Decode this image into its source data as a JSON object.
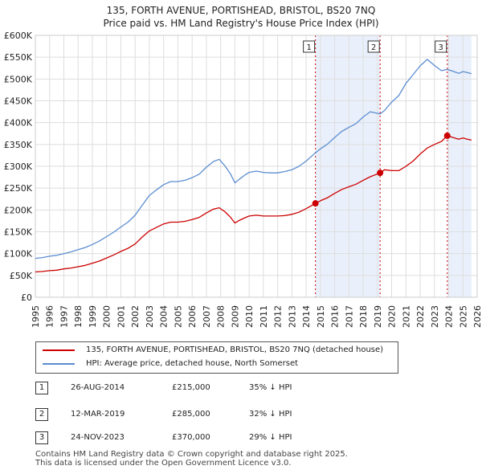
{
  "title_line1": "135, FORTH AVENUE, PORTISHEAD, BRISTOL, BS20 7NQ",
  "title_line2": "Price paid vs. HM Land Registry's House Price Index (HPI)",
  "colors": {
    "price_paid": "#cc0000",
    "hpi": "#5b8dd0",
    "highlight_band": "#eaf0fb",
    "grid": "#dddddd"
  },
  "legend": {
    "price_paid_label": "135, FORTH AVENUE, PORTISHEAD, BRISTOL, BS20 7NQ (detached house)",
    "hpi_label": "HPI: Average price, detached house, North Somerset"
  },
  "transactions": [
    {
      "num": "1",
      "date": "26-AUG-2014",
      "price": "£215,000",
      "pct": "35% ↓ HPI"
    },
    {
      "num": "2",
      "date": "12-MAR-2019",
      "price": "£285,000",
      "pct": "32% ↓ HPI"
    },
    {
      "num": "3",
      "date": "24-NOV-2023",
      "price": "£370,000",
      "pct": "29% ↓ HPI"
    }
  ],
  "footer_line1": "Contains HM Land Registry data © Crown copyright and database right 2025.",
  "footer_line2": "This data is licensed under the Open Government Licence v3.0.",
  "chart_data": {
    "type": "line",
    "xlim": [
      1995,
      2026
    ],
    "ylim": [
      0,
      600000
    ],
    "x_ticks": [
      1995,
      1996,
      1997,
      1998,
      1999,
      2000,
      2001,
      2002,
      2003,
      2004,
      2005,
      2006,
      2007,
      2008,
      2009,
      2010,
      2011,
      2012,
      2013,
      2014,
      2015,
      2016,
      2017,
      2018,
      2019,
      2020,
      2021,
      2022,
      2023,
      2024,
      2025,
      2026
    ],
    "y_ticks": [
      0,
      50000,
      100000,
      150000,
      200000,
      250000,
      300000,
      350000,
      400000,
      450000,
      500000,
      550000,
      600000
    ],
    "y_tick_labels": [
      "£0",
      "£50K",
      "£100K",
      "£150K",
      "£200K",
      "£250K",
      "£300K",
      "£350K",
      "£400K",
      "£450K",
      "£500K",
      "£550K",
      "£600K"
    ],
    "series": [
      {
        "name": "135, FORTH AVENUE, PORTISHEAD, BRISTOL, BS20 7NQ (detached house)",
        "x": [
          1995.0,
          1995.5,
          1996.0,
          1996.5,
          1997.0,
          1997.5,
          1998.0,
          1998.5,
          1999.0,
          1999.5,
          2000.0,
          2000.5,
          2001.0,
          2001.5,
          2002.0,
          2002.5,
          2003.0,
          2003.5,
          2004.0,
          2004.5,
          2005.0,
          2005.5,
          2006.0,
          2006.5,
          2007.0,
          2007.5,
          2007.9,
          2008.3,
          2008.7,
          2009.0,
          2009.3,
          2009.7,
          2010.0,
          2010.5,
          2011.0,
          2011.5,
          2012.0,
          2012.5,
          2013.0,
          2013.5,
          2014.0,
          2014.65,
          2015.0,
          2015.5,
          2016.0,
          2016.5,
          2017.0,
          2017.5,
          2018.0,
          2018.5,
          2019.19,
          2019.5,
          2020.0,
          2020.5,
          2021.0,
          2021.5,
          2022.0,
          2022.5,
          2023.0,
          2023.5,
          2023.9,
          2024.3,
          2024.7,
          2025.0,
          2025.3,
          2025.6
        ],
        "values": [
          58000,
          59000,
          61000,
          62000,
          65000,
          67000,
          70000,
          73000,
          78000,
          83000,
          90000,
          97000,
          105000,
          112000,
          122000,
          138000,
          152000,
          160000,
          168000,
          172000,
          172000,
          174000,
          178000,
          183000,
          193000,
          202000,
          205000,
          196000,
          183000,
          170000,
          176000,
          182000,
          186000,
          188000,
          186000,
          186000,
          186000,
          187000,
          190000,
          195000,
          203000,
          215000,
          221000,
          228000,
          238000,
          247000,
          253000,
          259000,
          268000,
          276000,
          285000,
          292000,
          290000,
          290000,
          300000,
          312000,
          328000,
          342000,
          350000,
          357000,
          370000,
          366000,
          362000,
          365000,
          362000,
          360000
        ]
      },
      {
        "name": "HPI: Average price, detached house, North Somerset",
        "x": [
          1995.0,
          1995.5,
          1996.0,
          1996.5,
          1997.0,
          1997.5,
          1998.0,
          1998.5,
          1999.0,
          1999.5,
          2000.0,
          2000.5,
          2001.0,
          2001.5,
          2002.0,
          2002.5,
          2003.0,
          2003.5,
          2004.0,
          2004.5,
          2005.0,
          2005.5,
          2006.0,
          2006.5,
          2007.0,
          2007.5,
          2007.9,
          2008.3,
          2008.7,
          2009.0,
          2009.3,
          2009.7,
          2010.0,
          2010.5,
          2011.0,
          2011.5,
          2012.0,
          2012.5,
          2013.0,
          2013.5,
          2014.0,
          2014.65,
          2015.0,
          2015.5,
          2016.0,
          2016.5,
          2017.0,
          2017.5,
          2018.0,
          2018.5,
          2019.19,
          2019.5,
          2020.0,
          2020.5,
          2021.0,
          2021.5,
          2022.0,
          2022.5,
          2023.0,
          2023.5,
          2023.9,
          2024.3,
          2024.7,
          2025.0,
          2025.3,
          2025.6
        ],
        "values": [
          89000,
          91000,
          94000,
          96000,
          100000,
          104000,
          109000,
          114000,
          121000,
          129000,
          139000,
          149000,
          161000,
          172000,
          188000,
          211000,
          233000,
          246000,
          258000,
          265000,
          265000,
          268000,
          274000,
          282000,
          298000,
          311000,
          316000,
          301000,
          282000,
          262000,
          270000,
          280000,
          286000,
          289000,
          286000,
          285000,
          285000,
          288000,
          292000,
          300000,
          312000,
          331000,
          340000,
          351000,
          366000,
          380000,
          389000,
          398000,
          413000,
          425000,
          420000,
          428000,
          447000,
          462000,
          490000,
          510000,
          530000,
          545000,
          531000,
          519000,
          522000,
          518000,
          513000,
          517000,
          515000,
          512000
        ]
      }
    ],
    "markers": [
      {
        "label": "1",
        "x": 2014.65,
        "value": 215000
      },
      {
        "label": "2",
        "x": 2019.19,
        "value": 285000
      },
      {
        "label": "3",
        "x": 2023.9,
        "value": 370000
      }
    ],
    "highlight_ranges": [
      [
        2014.65,
        2019.19
      ],
      [
        2023.9,
        2025.6
      ]
    ]
  }
}
